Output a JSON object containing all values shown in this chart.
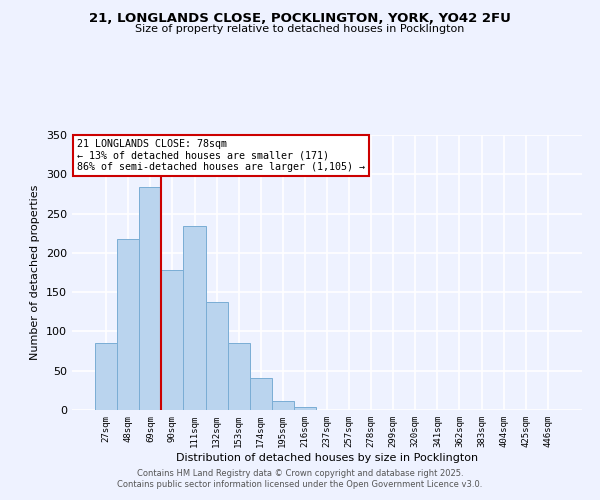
{
  "title_line1": "21, LONGLANDS CLOSE, POCKLINGTON, YORK, YO42 2FU",
  "title_line2": "Size of property relative to detached houses in Pocklington",
  "xlabel": "Distribution of detached houses by size in Pocklington",
  "ylabel": "Number of detached properties",
  "bar_labels": [
    "27sqm",
    "48sqm",
    "69sqm",
    "90sqm",
    "111sqm",
    "132sqm",
    "153sqm",
    "174sqm",
    "195sqm",
    "216sqm",
    "237sqm",
    "257sqm",
    "278sqm",
    "299sqm",
    "320sqm",
    "341sqm",
    "362sqm",
    "383sqm",
    "404sqm",
    "425sqm",
    "446sqm"
  ],
  "bar_values": [
    85,
    218,
    284,
    178,
    234,
    138,
    85,
    41,
    11,
    4,
    0,
    0,
    0,
    0,
    0,
    0,
    0,
    0,
    0,
    0,
    0
  ],
  "bar_color": "#bad4ee",
  "bar_edgecolor": "#7aadd4",
  "background_color": "#eef2ff",
  "grid_color": "#ffffff",
  "ylim": [
    0,
    350
  ],
  "yticks": [
    0,
    50,
    100,
    150,
    200,
    250,
    300,
    350
  ],
  "annotation_box_text": "21 LONGLANDS CLOSE: 78sqm\n← 13% of detached houses are smaller (171)\n86% of semi-detached houses are larger (1,105) →",
  "red_line_x": 2.5,
  "annotation_box_color": "#ffffff",
  "annotation_box_edgecolor": "#cc0000",
  "footer_line1": "Contains HM Land Registry data © Crown copyright and database right 2025.",
  "footer_line2": "Contains public sector information licensed under the Open Government Licence v3.0."
}
